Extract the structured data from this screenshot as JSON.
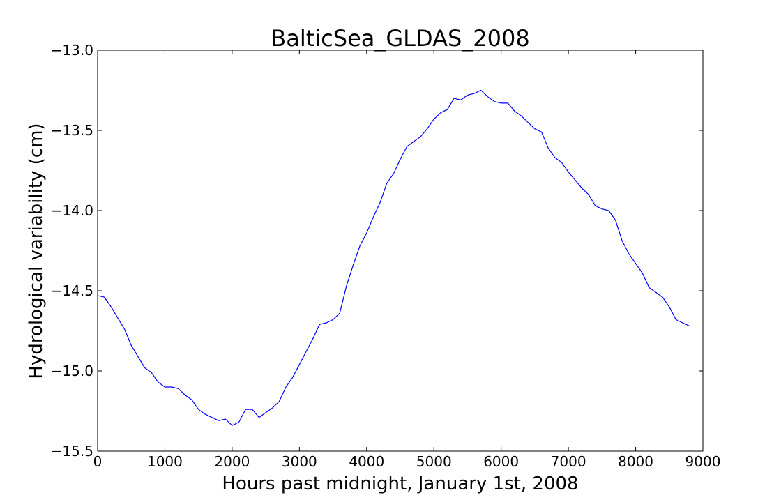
{
  "chart_data": {
    "type": "line",
    "title": "BalticSea_GLDAS_2008",
    "x_label": "Hours past midnight, January 1st, 2008",
    "y_label": "Hydrological variability (cm)",
    "x": [
      0,
      100,
      200,
      300,
      400,
      500,
      600,
      700,
      800,
      900,
      1000,
      1100,
      1200,
      1300,
      1400,
      1500,
      1600,
      1700,
      1800,
      1900,
      2000,
      2100,
      2200,
      2300,
      2400,
      2500,
      2600,
      2700,
      2800,
      2900,
      3000,
      3100,
      3200,
      3300,
      3400,
      3500,
      3600,
      3700,
      3800,
      3900,
      4000,
      4100,
      4200,
      4300,
      4400,
      4500,
      4600,
      4700,
      4800,
      4900,
      5000,
      5100,
      5200,
      5300,
      5400,
      5500,
      5600,
      5700,
      5800,
      5900,
      6000,
      6100,
      6200,
      6300,
      6400,
      6500,
      6600,
      6700,
      6800,
      6900,
      7000,
      7100,
      7200,
      7300,
      7400,
      7500,
      7600,
      7700,
      7800,
      7900,
      8000,
      8100,
      8200,
      8300,
      8400,
      8500,
      8600,
      8700,
      8800
    ],
    "series": [
      {
        "color": "#0000ff",
        "values": [
          -14.53,
          -14.54,
          -14.6,
          -14.67,
          -14.74,
          -14.84,
          -14.91,
          -14.98,
          -15.01,
          -15.07,
          -15.1,
          -15.1,
          -15.11,
          -15.15,
          -15.18,
          -15.24,
          -15.27,
          -15.29,
          -15.31,
          -15.3,
          -15.34,
          -15.32,
          -15.24,
          -15.24,
          -15.29,
          -15.26,
          -15.23,
          -15.19,
          -15.1,
          -15.04,
          -14.96,
          -14.88,
          -14.8,
          -14.71,
          -14.7,
          -14.68,
          -14.64,
          -14.47,
          -14.34,
          -14.22,
          -14.14,
          -14.04,
          -13.95,
          -13.83,
          -13.77,
          -13.68,
          -13.6,
          -13.57,
          -13.54,
          -13.49,
          -13.43,
          -13.39,
          -13.37,
          -13.3,
          -13.31,
          -13.28,
          -13.27,
          -13.25,
          -13.29,
          -13.32,
          -13.33,
          -13.33,
          -13.38,
          -13.41,
          -13.45,
          -13.49,
          -13.51,
          -13.61,
          -13.67,
          -13.7,
          -13.76,
          -13.81,
          -13.86,
          -13.9,
          -13.97,
          -13.99,
          -14.0,
          -14.06,
          -14.19,
          -14.27,
          -14.33,
          -14.39,
          -14.48,
          -14.51,
          -14.54,
          -14.6,
          -14.68,
          -14.7,
          -14.72
        ]
      }
    ],
    "xlim": [
      0,
      9000
    ],
    "xticks": [
      0,
      1000,
      2000,
      3000,
      4000,
      5000,
      6000,
      7000,
      8000,
      9000
    ],
    "ylim": [
      -15.5,
      -13.0
    ],
    "yticks": [
      {
        "value": -15.5,
        "label": "−15.5"
      },
      {
        "value": -15.0,
        "label": "−15.0"
      },
      {
        "value": -14.5,
        "label": "−14.5"
      },
      {
        "value": -14.0,
        "label": "−14.0"
      },
      {
        "value": -13.5,
        "label": "−13.5"
      },
      {
        "value": -13.0,
        "label": "−13.0"
      }
    ]
  }
}
